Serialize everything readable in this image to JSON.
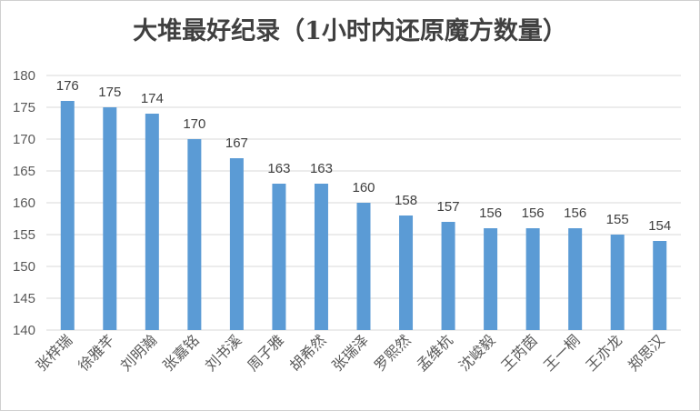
{
  "chart_data": {
    "type": "bar",
    "title": "大堆最好纪录（1小时内还原魔方数量）",
    "categories": [
      "张梓瑞",
      "徐雅芊",
      "刘明瀚",
      "张嘉铭",
      "刘书溪",
      "周子雅",
      "胡希然",
      "张瑞泽",
      "罗熙然",
      "孟维杭",
      "沈峻毅",
      "王芮茵",
      "王一桐",
      "王亦龙",
      "郑思汉"
    ],
    "values": [
      176,
      175,
      174,
      170,
      167,
      163,
      163,
      160,
      158,
      157,
      156,
      156,
      156,
      155,
      154
    ],
    "ylim": [
      140,
      180
    ],
    "yticks": [
      140,
      145,
      150,
      155,
      160,
      165,
      170,
      175,
      180
    ],
    "grid": true,
    "legend": "none",
    "bar_color": "#5b9bd5"
  }
}
